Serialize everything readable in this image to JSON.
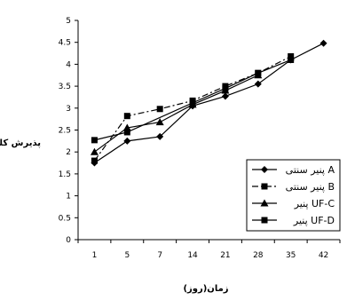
{
  "chart_data": {
    "type": "line",
    "xlabel": "زمان(روز)",
    "ylabel": "پذیرش کلی",
    "categories": [
      "1",
      "5",
      "7",
      "14",
      "21",
      "28",
      "35",
      "42"
    ],
    "ylim": [
      0,
      5
    ],
    "yticks": [
      "0",
      "0.5",
      "1",
      "1.5",
      "2",
      "2.5",
      "3",
      "3.5",
      "4",
      "4.5",
      "5"
    ],
    "grid": false,
    "legend_position": "right",
    "series": [
      {
        "name": "پنیر سنتی A",
        "marker": "diamond",
        "dash": "solid",
        "values": [
          1.75,
          2.25,
          2.35,
          3.05,
          3.27,
          3.55,
          4.1,
          4.48
        ]
      },
      {
        "name": "پنیر سنتی B",
        "marker": "square",
        "dash": "dashdot",
        "values": [
          1.8,
          2.82,
          2.98,
          3.17,
          3.5,
          3.8,
          4.18,
          null
        ]
      },
      {
        "name": "پنیر UF-C",
        "marker": "triangle",
        "dash": "solid",
        "values": [
          2.0,
          2.55,
          2.68,
          3.08,
          3.4,
          3.75,
          null,
          null
        ]
      },
      {
        "name": "پنیر UF-D",
        "marker": "square",
        "dash": "solid",
        "values": [
          2.27,
          2.45,
          null,
          3.12,
          3.45,
          3.8,
          4.1,
          null
        ]
      }
    ]
  }
}
